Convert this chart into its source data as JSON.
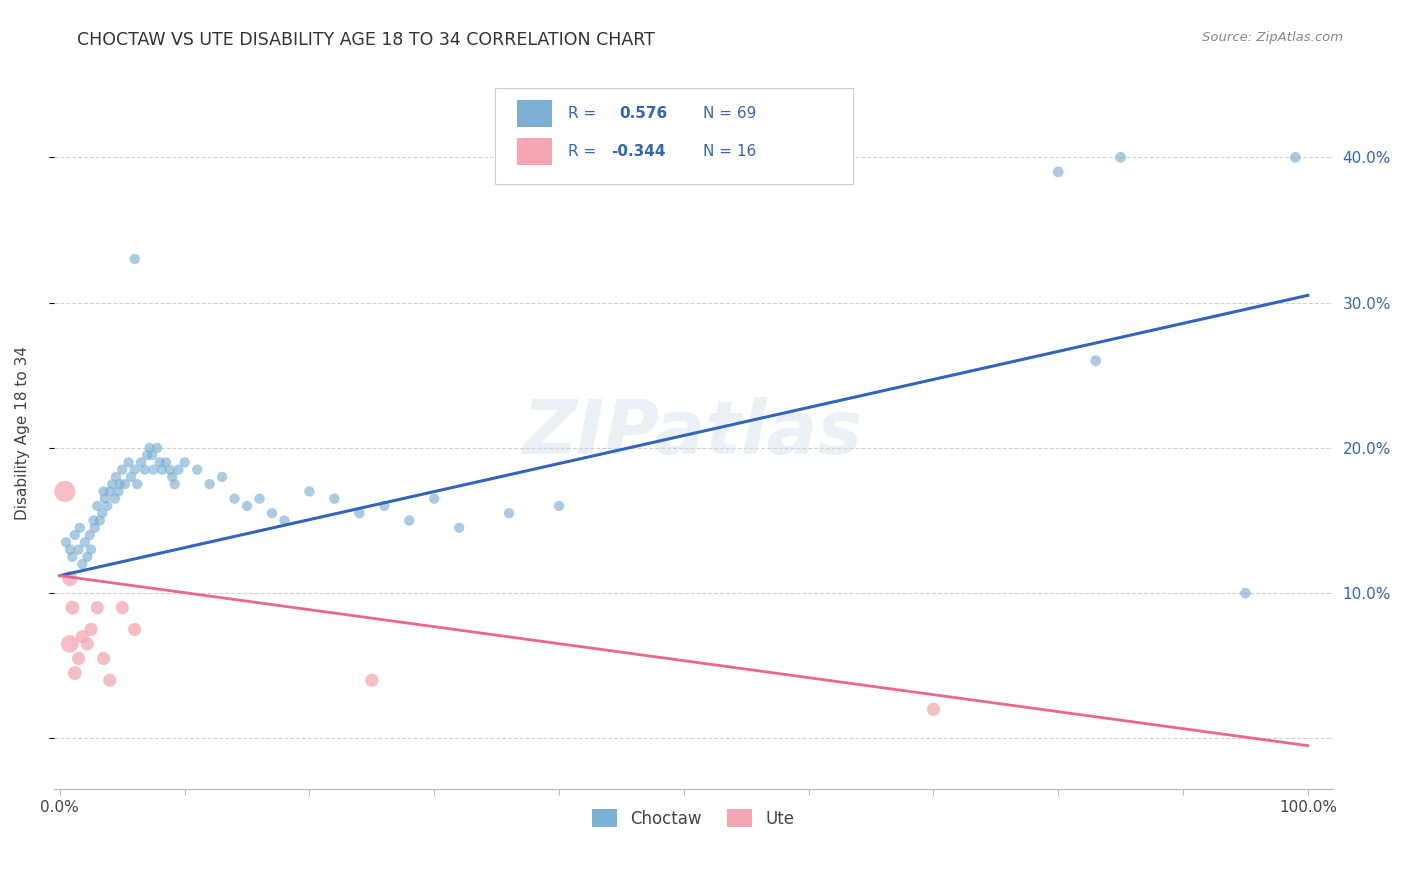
{
  "title": "CHOCTAW VS UTE DISABILITY AGE 18 TO 34 CORRELATION CHART",
  "source": "Source: ZipAtlas.com",
  "ylabel": "Disability Age 18 to 34",
  "watermark": "ZIPatlas",
  "legend_blue_label": "Choctaw",
  "legend_pink_label": "Ute",
  "blue_color": "#7BAFD4",
  "pink_color": "#F4A7B2",
  "blue_line_color": "#3366BB",
  "pink_line_color": "#EE6688",
  "grid_color": "#CCCCCC",
  "title_color": "#333333",
  "axis_label_color": "#3366BB",
  "source_color": "#888888",
  "background_color": "#FFFFFF",
  "blue_trend_x0": 0.0,
  "blue_trend_y0": 0.112,
  "blue_trend_x1": 1.0,
  "blue_trend_y1": 0.305,
  "pink_trend_x0": 0.0,
  "pink_trend_y0": 0.112,
  "pink_trend_x1": 1.0,
  "pink_trend_y1": -0.005,
  "xlim_min": -0.005,
  "xlim_max": 1.02,
  "ylim_min": -0.035,
  "ylim_max": 0.455,
  "ytick_positions": [
    0.0,
    0.1,
    0.2,
    0.3,
    0.4
  ],
  "yticklabels_right": [
    "",
    "10.0%",
    "20.0%",
    "30.0%",
    "40.0%"
  ],
  "xtick_positions": [
    0.0,
    0.1,
    0.2,
    0.3,
    0.4,
    0.5,
    0.6,
    0.7,
    0.8,
    0.9,
    1.0
  ],
  "xticklabels": [
    "0.0%",
    "",
    "",
    "",
    "",
    "",
    "",
    "",
    "",
    "",
    "100.0%"
  ],
  "choctaw_x": [
    0.005,
    0.008,
    0.01,
    0.012,
    0.015,
    0.016,
    0.018,
    0.02,
    0.022,
    0.024,
    0.025,
    0.027,
    0.028,
    0.03,
    0.032,
    0.034,
    0.035,
    0.036,
    0.038,
    0.04,
    0.042,
    0.044,
    0.045,
    0.047,
    0.048,
    0.05,
    0.052,
    0.055,
    0.057,
    0.06,
    0.062,
    0.065,
    0.068,
    0.07,
    0.072,
    0.074,
    0.075,
    0.078,
    0.08,
    0.082,
    0.085,
    0.088,
    0.09,
    0.092,
    0.095,
    0.1,
    0.11,
    0.12,
    0.13,
    0.14,
    0.15,
    0.16,
    0.17,
    0.18,
    0.2,
    0.22,
    0.24,
    0.26,
    0.28,
    0.3,
    0.32,
    0.36,
    0.4,
    0.8,
    0.85,
    0.83,
    0.95,
    0.99,
    0.06
  ],
  "choctaw_y": [
    0.135,
    0.13,
    0.125,
    0.14,
    0.13,
    0.145,
    0.12,
    0.135,
    0.125,
    0.14,
    0.13,
    0.15,
    0.145,
    0.16,
    0.15,
    0.155,
    0.17,
    0.165,
    0.16,
    0.17,
    0.175,
    0.165,
    0.18,
    0.17,
    0.175,
    0.185,
    0.175,
    0.19,
    0.18,
    0.185,
    0.175,
    0.19,
    0.185,
    0.195,
    0.2,
    0.195,
    0.185,
    0.2,
    0.19,
    0.185,
    0.19,
    0.185,
    0.18,
    0.175,
    0.185,
    0.19,
    0.185,
    0.175,
    0.18,
    0.165,
    0.16,
    0.165,
    0.155,
    0.15,
    0.17,
    0.165,
    0.155,
    0.16,
    0.15,
    0.165,
    0.145,
    0.155,
    0.16,
    0.39,
    0.4,
    0.26,
    0.1,
    0.4,
    0.33
  ],
  "choctaw_sizes": [
    55,
    55,
    55,
    55,
    55,
    55,
    55,
    55,
    55,
    55,
    55,
    55,
    55,
    55,
    55,
    55,
    55,
    55,
    55,
    55,
    55,
    55,
    55,
    55,
    55,
    55,
    55,
    55,
    55,
    55,
    55,
    55,
    55,
    55,
    55,
    55,
    55,
    55,
    55,
    55,
    55,
    55,
    55,
    55,
    55,
    55,
    55,
    55,
    55,
    55,
    55,
    55,
    55,
    55,
    55,
    55,
    55,
    55,
    55,
    55,
    55,
    55,
    55,
    60,
    60,
    60,
    60,
    60,
    55
  ],
  "ute_x": [
    0.004,
    0.008,
    0.01,
    0.015,
    0.018,
    0.022,
    0.025,
    0.03,
    0.035,
    0.04,
    0.05,
    0.06,
    0.25,
    0.7,
    0.008,
    0.012
  ],
  "ute_y": [
    0.17,
    0.11,
    0.09,
    0.055,
    0.07,
    0.065,
    0.075,
    0.09,
    0.055,
    0.04,
    0.09,
    0.075,
    0.04,
    0.02,
    0.065,
    0.045
  ],
  "ute_sizes": [
    230,
    120,
    100,
    90,
    90,
    90,
    90,
    90,
    90,
    90,
    90,
    90,
    90,
    90,
    160,
    100
  ]
}
